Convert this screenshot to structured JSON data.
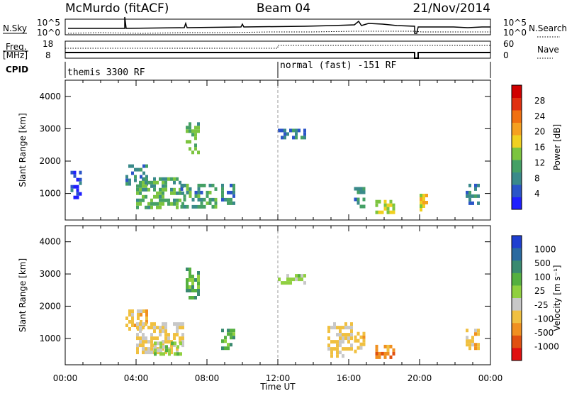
{
  "header": {
    "station": "McMurdo (fitACF)",
    "beam": "Beam 04",
    "date": "21/Nov/2014"
  },
  "sky_panel": {
    "left_label": "N.Sky",
    "left_ticks": [
      "10^5",
      "10^0"
    ],
    "right_label": "N.Search",
    "right_ticks": [
      "10^5",
      "10^0"
    ]
  },
  "freq_panel": {
    "left_label_top": "Freq.",
    "left_label_bottom": "[MHz]",
    "left_ticks": [
      "18",
      "8"
    ],
    "right_label": "Nave",
    "right_ticks": [
      "60",
      "0"
    ]
  },
  "cpid_panel": {
    "label": "CPID",
    "modes": [
      "themis 3300 RF",
      "normal (fast) -151 RF"
    ]
  },
  "chart_data": [
    {
      "type": "heatmap",
      "name": "power",
      "xlabel": "Time UT",
      "ylabel": "Slant Range [km]",
      "x_ticks": [
        "00:00",
        "04:00",
        "08:00",
        "12:00",
        "16:00",
        "20:00",
        "00:00"
      ],
      "xlim": [
        0,
        24
      ],
      "ylim": [
        180,
        4500
      ],
      "y_ticks": [
        1000,
        2000,
        3000,
        4000
      ],
      "colorbar": {
        "label": "Power [dB]",
        "ticks": [
          "4",
          "8",
          "12",
          "16",
          "20",
          "24",
          "28"
        ],
        "colors": [
          "#1f1fff",
          "#2b55c8",
          "#3a8a8a",
          "#45a065",
          "#7cc43f",
          "#f0d020",
          "#f5a020",
          "#f07010",
          "#e03010",
          "#d00000"
        ]
      },
      "mode_change_hour": 12,
      "echo_regions": [
        {
          "t0": 0.3,
          "t1": 0.8,
          "r0": 900,
          "r1": 1700,
          "level": 4
        },
        {
          "t0": 3.4,
          "t1": 4.6,
          "r0": 1300,
          "r1": 1900,
          "level": 9
        },
        {
          "t0": 4.0,
          "t1": 6.6,
          "r0": 600,
          "r1": 1500,
          "level": 12
        },
        {
          "t0": 6.8,
          "t1": 7.5,
          "r0": 2300,
          "r1": 3200,
          "level": 12
        },
        {
          "t0": 6.5,
          "t1": 8.5,
          "r0": 600,
          "r1": 1300,
          "level": 10
        },
        {
          "t0": 8.8,
          "t1": 9.6,
          "r0": 700,
          "r1": 1300,
          "level": 9
        },
        {
          "t0": 12.0,
          "t1": 13.5,
          "r0": 2700,
          "r1": 3000,
          "level": 7
        },
        {
          "t0": 16.3,
          "t1": 16.8,
          "r0": 600,
          "r1": 1200,
          "level": 9
        },
        {
          "t0": 17.5,
          "t1": 18.6,
          "r0": 400,
          "r1": 800,
          "level": 16
        },
        {
          "t0": 20.0,
          "t1": 20.4,
          "r0": 500,
          "r1": 1100,
          "level": 18
        },
        {
          "t0": 22.6,
          "t1": 23.4,
          "r0": 700,
          "r1": 1300,
          "level": 8
        }
      ]
    },
    {
      "type": "heatmap",
      "name": "velocity",
      "xlabel": "Time UT",
      "ylabel": "Slant Range [km]",
      "x_ticks": [
        "00:00",
        "04:00",
        "08:00",
        "12:00",
        "16:00",
        "20:00",
        "00:00"
      ],
      "xlim": [
        0,
        24
      ],
      "ylim": [
        180,
        4500
      ],
      "y_ticks": [
        1000,
        2000,
        3000,
        4000
      ],
      "colorbar": {
        "label": "Velocity [m s⁻¹]",
        "ticks": [
          "1000",
          "500",
          "100",
          "25",
          "-25",
          "-100",
          "-500",
          "-1000"
        ],
        "colors": [
          "#1f3fd0",
          "#2a6aa0",
          "#3a8a70",
          "#55b040",
          "#90d040",
          "#c8c8c8",
          "#f0c040",
          "#f09020",
          "#e05010",
          "#e01010"
        ]
      },
      "mode_change_hour": 12,
      "echo_regions": [
        {
          "t0": 3.4,
          "t1": 4.6,
          "r0": 1300,
          "r1": 1900,
          "level": -300
        },
        {
          "t0": 4.0,
          "t1": 6.6,
          "r0": 600,
          "r1": 1500,
          "level": -200
        },
        {
          "t0": 5.0,
          "t1": 6.5,
          "r0": 500,
          "r1": 900,
          "level": 100
        },
        {
          "t0": 6.8,
          "t1": 7.5,
          "r0": 2300,
          "r1": 3200,
          "level": 300
        },
        {
          "t0": 8.8,
          "t1": 9.6,
          "r0": 700,
          "r1": 1300,
          "level": 300
        },
        {
          "t0": 12.0,
          "t1": 13.5,
          "r0": 2700,
          "r1": 3000,
          "level": 80
        },
        {
          "t0": 14.8,
          "t1": 16.2,
          "r0": 400,
          "r1": 1500,
          "level": -250
        },
        {
          "t0": 16.3,
          "t1": 16.8,
          "r0": 600,
          "r1": 1200,
          "level": -300
        },
        {
          "t0": 17.5,
          "t1": 18.6,
          "r0": 400,
          "r1": 800,
          "level": -500
        },
        {
          "t0": 22.6,
          "t1": 23.4,
          "r0": 700,
          "r1": 1300,
          "level": -300
        }
      ]
    }
  ]
}
